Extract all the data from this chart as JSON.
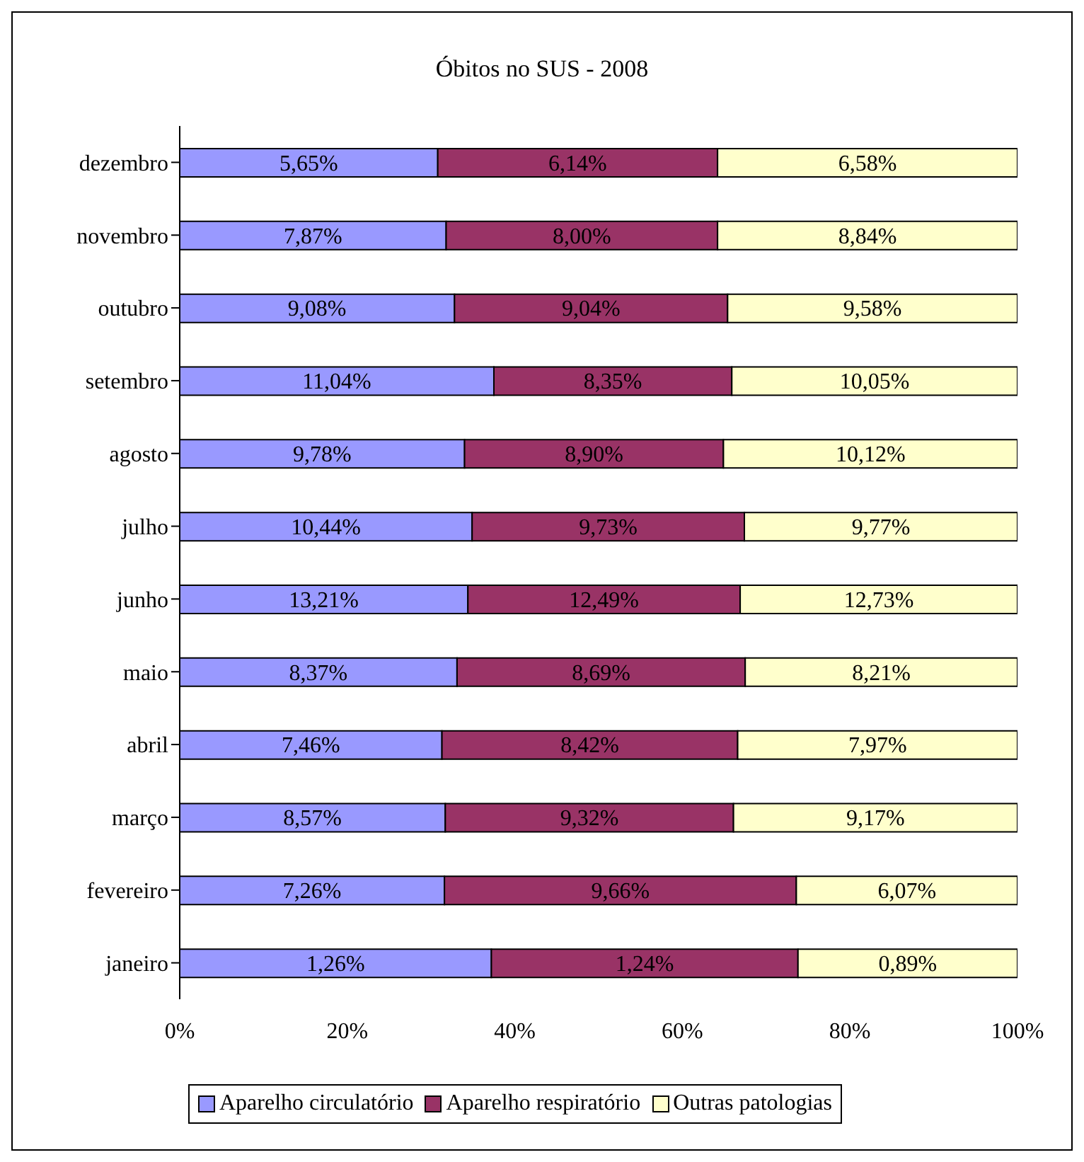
{
  "chart_data": {
    "type": "bar",
    "orientation": "horizontal",
    "stacked": true,
    "title": "Óbitos no SUS - 2008",
    "categories": [
      "dezembro",
      "novembro",
      "outubro",
      "setembro",
      "agosto",
      "julho",
      "junho",
      "maio",
      "abril",
      "março",
      "fevereiro",
      "janeiro"
    ],
    "series": [
      {
        "name": "Aparelho circulatório",
        "color": "#9999ff",
        "values": [
          30.8,
          31.8,
          32.8,
          37.5,
          34.0,
          34.9,
          34.4,
          33.1,
          31.3,
          31.7,
          31.6,
          37.2
        ]
      },
      {
        "name": "Aparelho respiratório",
        "color": "#993366",
        "values": [
          33.4,
          32.4,
          32.6,
          28.4,
          30.9,
          32.5,
          32.5,
          34.4,
          35.3,
          34.4,
          42.0,
          36.6
        ]
      },
      {
        "name": "Outras patologias",
        "color": "#ffffcc",
        "values": [
          35.8,
          35.8,
          34.6,
          34.1,
          35.1,
          32.6,
          33.1,
          32.5,
          33.4,
          33.9,
          26.4,
          26.2
        ]
      }
    ],
    "annotations": [
      "5,65%",
      "6,14%",
      "6,58%",
      "7,87%",
      "8,00%",
      "8,84%",
      "9,08%",
      "9,04%",
      "9,58%",
      "11,04%",
      "8,35%",
      "10,05%",
      "9,78%",
      "8,90%",
      "10,12%",
      "10,44%",
      "9,73%",
      "9,77%",
      "13,21%",
      "12,49%",
      "12,73%",
      "8,37%",
      "8,69%",
      "8,21%",
      "7,46%",
      "8,42%",
      "7,97%",
      "8,57%",
      "9,32%",
      "9,17%",
      "7,26%",
      "9,66%",
      "6,07%",
      "1,26%",
      "1,24%",
      "0,89%"
    ],
    "xlim": [
      0,
      100
    ],
    "xticks": [
      {
        "value": 0,
        "label": "0%"
      },
      {
        "value": 20,
        "label": "20%"
      },
      {
        "value": 40,
        "label": "40%"
      },
      {
        "value": 60,
        "label": "60%"
      },
      {
        "value": 80,
        "label": "80%"
      },
      {
        "value": 100,
        "label": "100%"
      }
    ],
    "grid": false,
    "legend": "bottom"
  }
}
